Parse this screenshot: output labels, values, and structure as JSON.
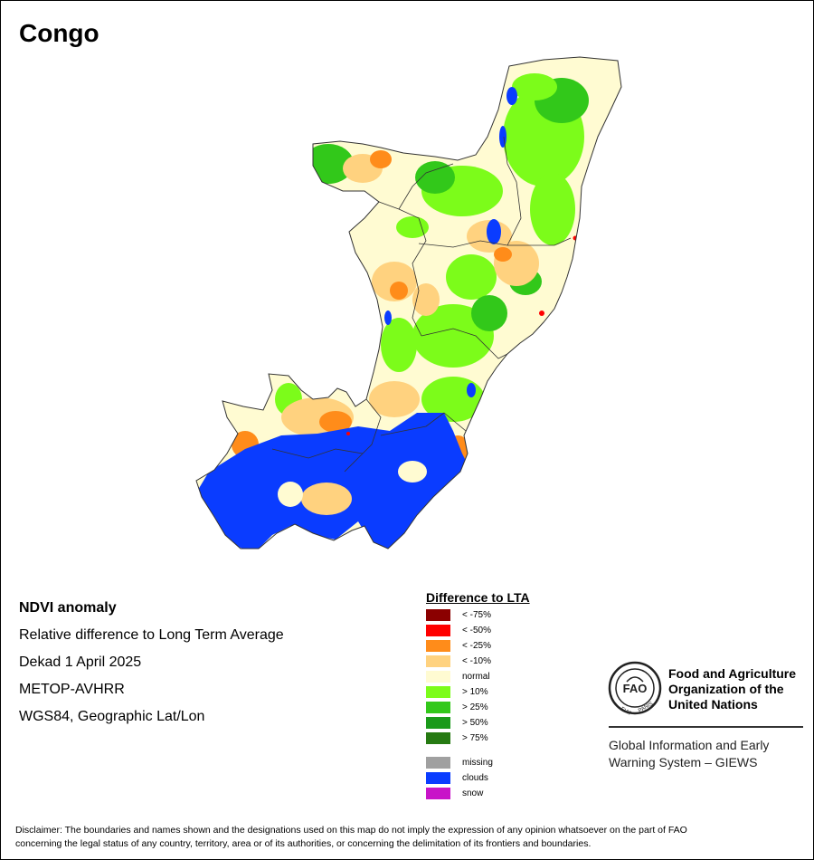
{
  "map": {
    "title": "Congo"
  },
  "info": {
    "title": "NDVI anomaly",
    "subtitle": "Relative difference to Long Term Average",
    "period": "Dekad 1 April 2025",
    "sensor": "METOP-AVHRR",
    "projection": "WGS84, Geographic Lat/Lon"
  },
  "legend": {
    "title": "Difference to LTA",
    "items": [
      {
        "label": "< -75%",
        "color": "#8b0000"
      },
      {
        "label": "< -50%",
        "color": "#ff0000"
      },
      {
        "label": "< -25%",
        "color": "#ff8c1a"
      },
      {
        "label": "< -10%",
        "color": "#ffd27f"
      },
      {
        "label": "normal",
        "color": "#fffbd2"
      },
      {
        "label": "> 10%",
        "color": "#7cfc1a"
      },
      {
        "label": "> 25%",
        "color": "#32c81a"
      },
      {
        "label": "> 50%",
        "color": "#1a9a1a"
      },
      {
        "label": "> 75%",
        "color": "#267a12"
      }
    ],
    "extra_items": [
      {
        "label": "missing",
        "color": "#a0a0a0"
      },
      {
        "label": "clouds",
        "color": "#0a3cff"
      },
      {
        "label": "snow",
        "color": "#c814c8"
      }
    ]
  },
  "fao": {
    "name_line1": "Food and Agriculture",
    "name_line2": "Organization of the",
    "name_line3": "United Nations",
    "logo_text": "FAO",
    "logo_motto_left": "FIAT",
    "logo_motto_right": "PANIS",
    "giews_line1": "Global Information and Early",
    "giews_line2": "Warning System – GIEWS"
  },
  "disclaimer": {
    "line1": "Disclaimer: The boundaries and names shown and the designations used on this map do not imply the expression of any opinion whatsoever on the part of FAO",
    "line2": "concerning the legal status of any country, territory, area or of its authorities, or concerning the delimitation of its frontiers and boundaries."
  }
}
